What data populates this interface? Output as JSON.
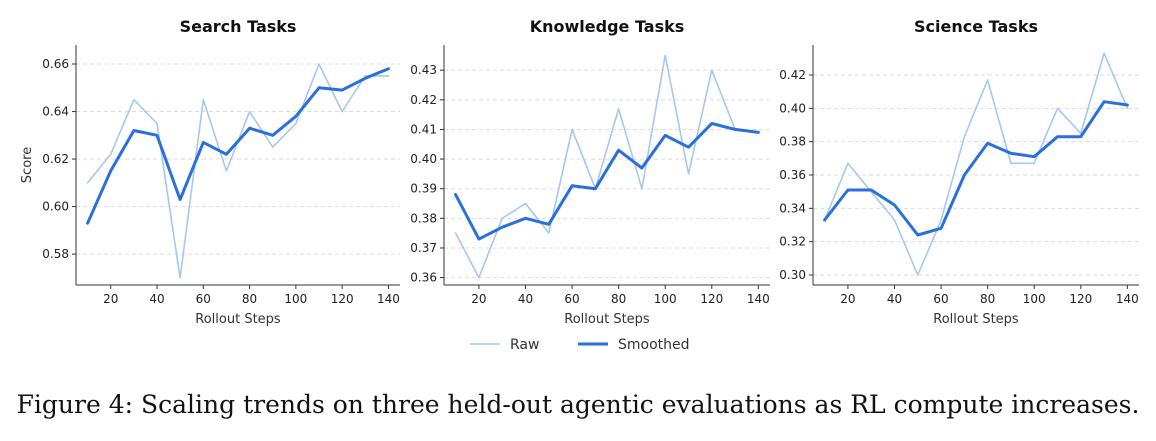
{
  "chart_data": [
    {
      "type": "line",
      "title": "Search Tasks",
      "xlabel": "Rollout Steps",
      "ylabel": "Score",
      "ylim": [
        0.567,
        0.668
      ],
      "xlim": [
        5,
        145
      ],
      "yticks": [
        0.58,
        0.6,
        0.62,
        0.64,
        0.66
      ],
      "ytick_labels": [
        "0.58",
        "0.60",
        "0.62",
        "0.64",
        "0.66"
      ],
      "xticks": [
        20,
        40,
        60,
        80,
        100,
        120,
        140
      ],
      "xtick_labels": [
        "20",
        "40",
        "60",
        "80",
        "100",
        "120",
        "140"
      ],
      "grid": "horizontal dashed",
      "series": [
        {
          "name": "Raw",
          "x": [
            10,
            20,
            30,
            40,
            50,
            60,
            70,
            80,
            90,
            100,
            110,
            120,
            130,
            140
          ],
          "y": [
            0.61,
            0.622,
            0.645,
            0.635,
            0.57,
            0.645,
            0.615,
            0.64,
            0.625,
            0.635,
            0.66,
            0.64,
            0.655,
            0.655
          ]
        },
        {
          "name": "Smoothed",
          "x": [
            10,
            20,
            30,
            40,
            50,
            60,
            70,
            80,
            90,
            100,
            110,
            120,
            130,
            140
          ],
          "y": [
            0.593,
            0.615,
            0.632,
            0.63,
            0.603,
            0.627,
            0.622,
            0.633,
            0.63,
            0.638,
            0.65,
            0.649,
            0.654,
            0.658
          ]
        }
      ]
    },
    {
      "type": "line",
      "title": "Knowledge Tasks",
      "xlabel": "Rollout Steps",
      "ylabel": "",
      "ylim": [
        0.3575,
        0.4385
      ],
      "xlim": [
        5,
        145
      ],
      "yticks": [
        0.36,
        0.37,
        0.38,
        0.39,
        0.4,
        0.41,
        0.42,
        0.43
      ],
      "ytick_labels": [
        "0.36",
        "0.37",
        "0.38",
        "0.39",
        "0.40",
        "0.41",
        "0.42",
        "0.43"
      ],
      "xticks": [
        20,
        40,
        60,
        80,
        100,
        120,
        140
      ],
      "xtick_labels": [
        "20",
        "40",
        "60",
        "80",
        "100",
        "120",
        "140"
      ],
      "grid": "horizontal dashed",
      "series": [
        {
          "name": "Raw",
          "x": [
            10,
            20,
            30,
            40,
            50,
            60,
            70,
            80,
            90,
            100,
            110,
            120,
            130,
            140
          ],
          "y": [
            0.375,
            0.36,
            0.38,
            0.385,
            0.375,
            0.41,
            0.39,
            0.417,
            0.39,
            0.435,
            0.395,
            0.43,
            0.41,
            0.409
          ]
        },
        {
          "name": "Smoothed",
          "x": [
            10,
            20,
            30,
            40,
            50,
            60,
            70,
            80,
            90,
            100,
            110,
            120,
            130,
            140
          ],
          "y": [
            0.388,
            0.373,
            0.377,
            0.38,
            0.378,
            0.391,
            0.39,
            0.403,
            0.397,
            0.408,
            0.404,
            0.412,
            0.41,
            0.409
          ]
        }
      ]
    },
    {
      "type": "line",
      "title": "Science Tasks",
      "xlabel": "Rollout Steps",
      "ylabel": "",
      "ylim": [
        0.294,
        0.438
      ],
      "xlim": [
        5,
        145
      ],
      "yticks": [
        0.3,
        0.32,
        0.34,
        0.36,
        0.38,
        0.4,
        0.42
      ],
      "ytick_labels": [
        "0.30",
        "0.32",
        "0.34",
        "0.36",
        "0.38",
        "0.40",
        "0.42"
      ],
      "xticks": [
        20,
        40,
        60,
        80,
        100,
        120,
        140
      ],
      "xtick_labels": [
        "20",
        "40",
        "60",
        "80",
        "100",
        "120",
        "140"
      ],
      "grid": "horizontal dashed",
      "series": [
        {
          "name": "Raw",
          "x": [
            10,
            20,
            30,
            40,
            50,
            60,
            70,
            80,
            90,
            100,
            110,
            120,
            130,
            140
          ],
          "y": [
            0.333,
            0.367,
            0.35,
            0.333,
            0.3,
            0.333,
            0.383,
            0.417,
            0.367,
            0.367,
            0.4,
            0.385,
            0.433,
            0.4
          ]
        },
        {
          "name": "Smoothed",
          "x": [
            10,
            20,
            30,
            40,
            50,
            60,
            70,
            80,
            90,
            100,
            110,
            120,
            130,
            140
          ],
          "y": [
            0.333,
            0.351,
            0.351,
            0.342,
            0.324,
            0.328,
            0.36,
            0.379,
            0.373,
            0.371,
            0.383,
            0.383,
            0.404,
            0.402
          ]
        }
      ]
    }
  ],
  "legend": {
    "placement": "bottom-center",
    "entries": [
      {
        "label": "Raw",
        "color": "#a4c8f0"
      },
      {
        "label": "Smoothed",
        "color": "#2a6fdb"
      }
    ]
  },
  "colors": {
    "raw": "#a4c8f0",
    "smoothed": "#2a6fdb",
    "axis": "#333333",
    "grid": "#dddddd"
  },
  "caption": "Figure 4: Scaling trends on three held-out agentic evaluations as RL compute increases."
}
